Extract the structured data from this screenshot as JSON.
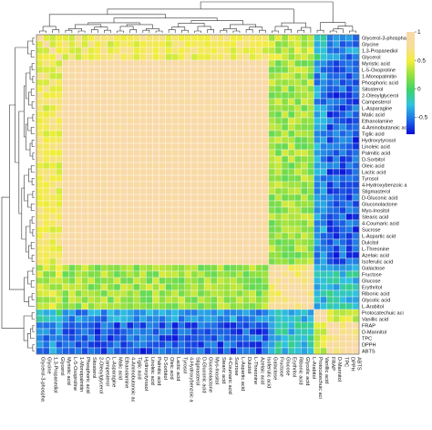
{
  "chart_data": {
    "type": "heatmap",
    "title": "",
    "labels": [
      "Glycerol-3-phospha",
      "Glycine",
      "1,3-Propanediol",
      "Glycerol",
      "Myristic acid",
      "L-5-Oxoproline",
      "1-Monopalmitin",
      "Phosphoric acid",
      "Sitosterol",
      "2-Oleoylglycerol",
      "Campesterol",
      "L-Asparagine",
      "Malic acid",
      "Ethanolamine",
      "4-Aminobutanoic ac",
      "Tiglic acid",
      "Hydroxytyrosol",
      "Linoleic acid",
      "Palmitic acid",
      "D-Sorbitol",
      "Oleic acid",
      "Lactic acid",
      "Tyrosol",
      "4-Hydroxybenzoic a",
      "Stigmasterol",
      "D-Gluconic acid",
      "Gluconolactone",
      "Myo-Inositol",
      "Stearic acid",
      "4-Coumaric acid",
      "Sucrose",
      "L-Aspartic acid",
      "Dulcitol",
      "L-Threonine",
      "Azelaic acid",
      "Isoferulic acid",
      "Galactose",
      "Fructose",
      "Glucose",
      "Erythritol",
      "Ribonic acid",
      "Glycolic acid",
      "L-Arabitol",
      "Protocatechuic aci",
      "Vanillic acid",
      "FRAP",
      "D-Mannitol",
      "TPC",
      "DPPH",
      "ABTS"
    ],
    "row_labels_display": [
      "Glycerol-3-phospha",
      "Glycine",
      "1,3-Propanediol",
      "Glycerol",
      "Myristic acid",
      "L-5-Oxoproline",
      "1-Monopalmitin",
      "Phosphoric acid",
      "Sitosterol",
      "2-Oleoylglycerol",
      "Campesterol",
      "L-Asparagine",
      "Malic acid",
      "Ethanolamine",
      "4-Aminobutanoic ac",
      "Tiglic acid",
      "Hydroxytyrosol",
      "Linoleic acid",
      "Palmitic acid",
      "D-Sorbitol",
      "Oleic acid",
      "Lactic acid",
      "Tyrosol",
      "4-Hydroxybenzoic a",
      "Stigmasterol",
      "D-Gluconic acid",
      "Gluconolactone",
      "Myo-Inositol",
      "Stearic acid",
      "4-Coumaric acid",
      "Sucrose",
      "L-Aspartic acid",
      "Dulcitol",
      "L-Threonine",
      "Azelaic acid",
      "Isoferulic acid",
      "Galactose",
      "Fructose",
      "Glucose",
      "Erythritol",
      "Ribonic acid",
      "Glycolic acid",
      "L-Arabitol",
      "Protocatechuic aci",
      "Vanillic acid",
      "FRAP",
      "D-Mannitol",
      "TPC",
      "DPPH",
      "ABTS"
    ],
    "groups": [
      {
        "start": 0,
        "end": 3,
        "within": 0.55
      },
      {
        "start": 4,
        "end": 35,
        "within": 0.97
      },
      {
        "start": 36,
        "end": 42,
        "within": 0.7
      },
      {
        "start": 43,
        "end": 44,
        "within": 0.75
      },
      {
        "start": 45,
        "end": 49,
        "within": 0.8
      }
    ],
    "group_correlation": [
      [
        0.55,
        0.55,
        0.35,
        -0.2,
        -0.45
      ],
      [
        0.55,
        0.97,
        0.25,
        -0.45,
        -0.6
      ],
      [
        0.35,
        0.25,
        0.7,
        -0.3,
        -0.25
      ],
      [
        -0.2,
        -0.45,
        -0.3,
        0.75,
        0.45
      ],
      [
        -0.45,
        -0.6,
        -0.25,
        0.45,
        0.8
      ]
    ],
    "colorbar": {
      "ticks": [
        "1",
        "0.5",
        "0",
        "-0.5"
      ],
      "values": [
        1,
        0.5,
        0,
        -0.5
      ],
      "vmin": -0.8,
      "vmax": 1
    },
    "colormap": [
      "#0a0ad8",
      "#1e6fe6",
      "#2fc2e0",
      "#3cd46a",
      "#8fe040",
      "#f2ee3a",
      "#f7dd9a",
      "#f9d9a8"
    ],
    "grid": true
  }
}
